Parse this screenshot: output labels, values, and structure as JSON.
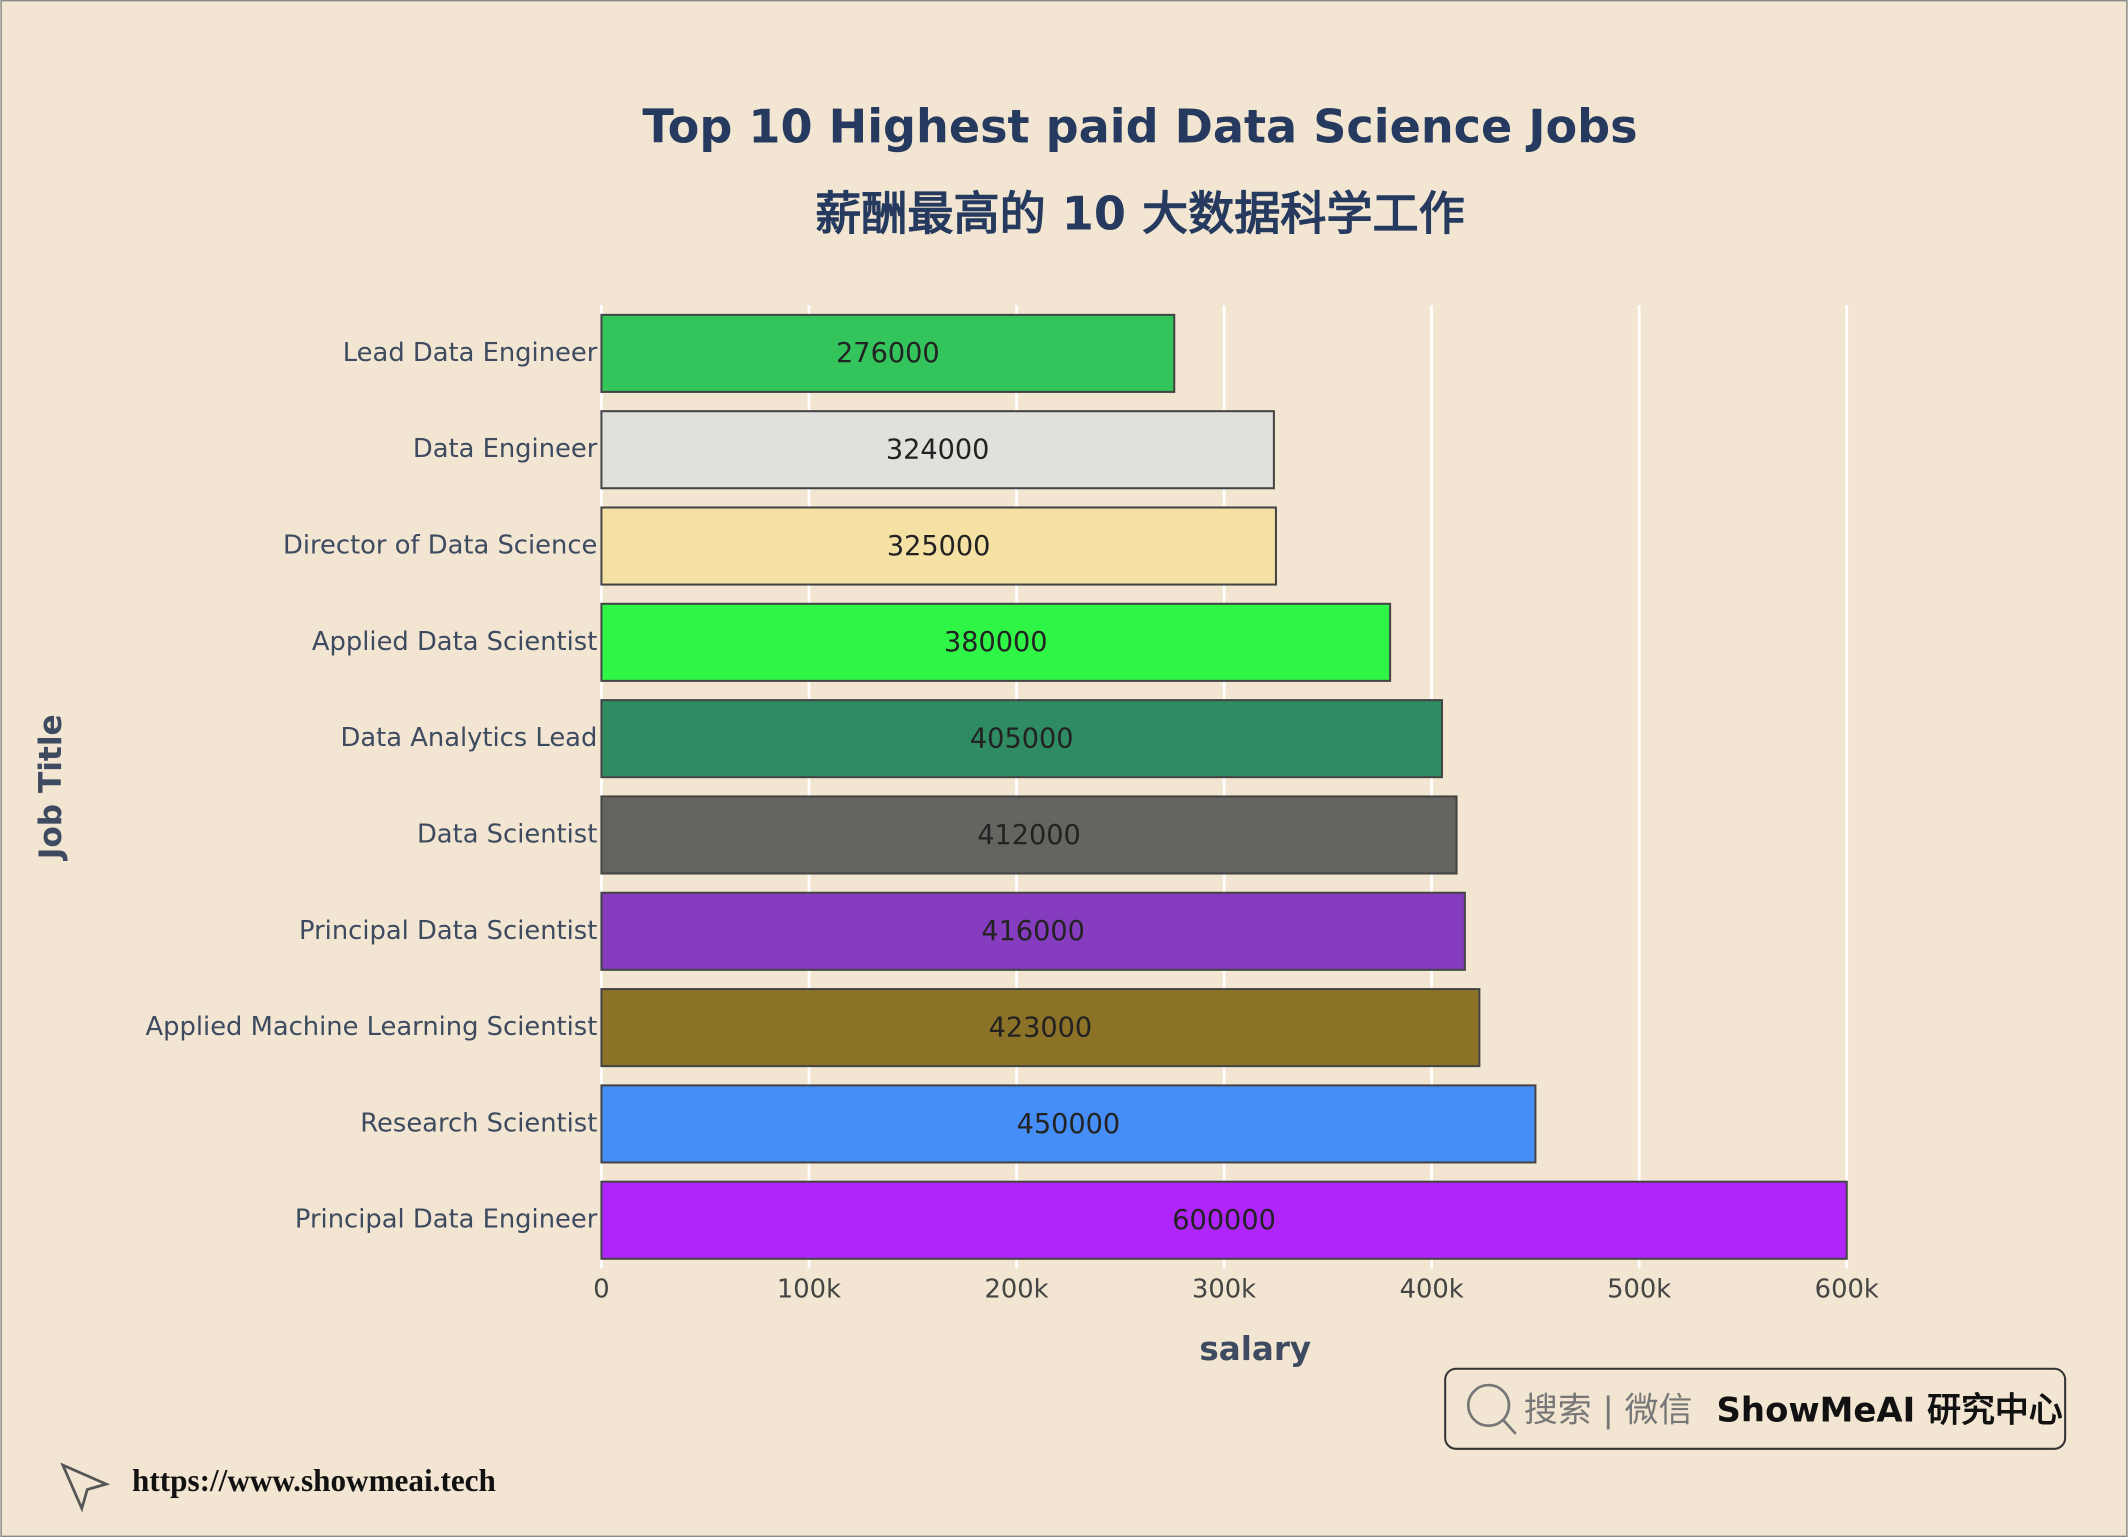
{
  "chart_data": {
    "type": "bar",
    "orientation": "horizontal",
    "title": "Top 10 Highest paid Data Science Jobs",
    "subtitle": "薪酬最高的 10 大数据科学工作",
    "x_label": "salary",
    "y_label": "Job Title",
    "categories": [
      "Lead Data Engineer",
      "Data Engineer",
      "Director of Data Science",
      "Applied Data Scientist",
      "Data Analytics Lead",
      "Data Scientist",
      "Principal Data Scientist",
      "Applied Machine Learning Scientist",
      "Research Scientist",
      "Principal Data Engineer"
    ],
    "values": [
      276000,
      324000,
      325000,
      380000,
      405000,
      412000,
      416000,
      423000,
      450000,
      600000
    ],
    "colors": [
      "#33c45b",
      "#e2e0dc",
      "#f5e1a4",
      "#2ff546",
      "#2e8b62",
      "#646461",
      "#853cbf",
      "#8b7226",
      "#458ef7",
      "#b026fa"
    ],
    "xlim": [
      0,
      600000
    ],
    "xticks": [
      0,
      {
        "value": 100000,
        "label": "100k"
      },
      {
        "value": 200000,
        "label": "200k"
      },
      {
        "value": 300000,
        "label": "300k"
      },
      {
        "value": 400000,
        "label": "400k"
      },
      {
        "value": 500000,
        "label": "500k"
      },
      {
        "value": 600000,
        "label": "600k"
      }
    ],
    "grid": true
  },
  "watermark": {
    "search": "搜索 | 微信",
    "brand": "ShowMeAI 研究中心"
  },
  "footer": {
    "url": "https://www.showmeai.tech"
  }
}
